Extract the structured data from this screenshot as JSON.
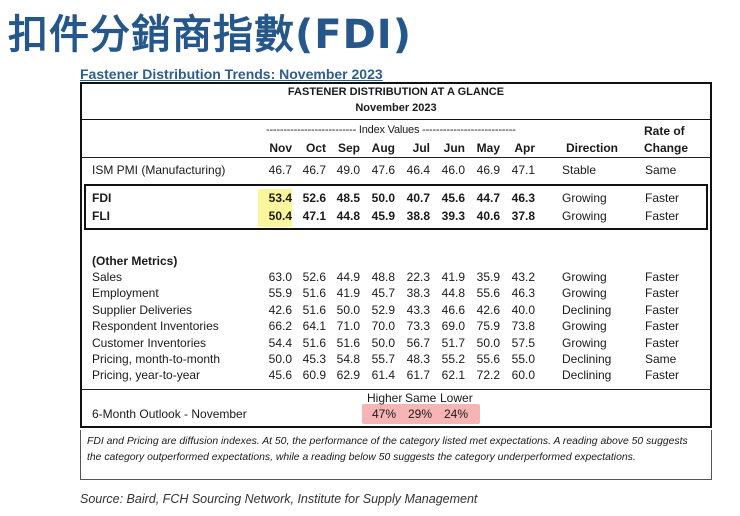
{
  "page_title": "扣件分銷商指數(FDI)",
  "subtitle": "Fastener Distribution Trends: November 2023",
  "table": {
    "heading_line1": "FASTENER DISTRIBUTION AT A GLANCE",
    "heading_line2": "November 2023",
    "index_values_label": "-------------------------- Index Values ---------------------------",
    "direction_header": "Direction",
    "rate_header_line1": "Rate of",
    "rate_header_line2": "Change",
    "months": [
      "Nov",
      "Oct",
      "Sep",
      "Aug",
      "Jul",
      "Jun",
      "May",
      "Apr"
    ],
    "ism": {
      "label": "ISM PMI (Manufacturing)",
      "values": [
        "46.7",
        "46.7",
        "49.0",
        "47.6",
        "46.4",
        "46.0",
        "46.9",
        "47.1"
      ],
      "direction": "Stable",
      "rate": "Same"
    },
    "fdi": {
      "label": "FDI",
      "values": [
        "53.4",
        "52.6",
        "48.5",
        "50.0",
        "40.7",
        "45.6",
        "44.7",
        "46.3"
      ],
      "direction": "Growing",
      "rate": "Faster"
    },
    "fli": {
      "label": "FLI",
      "values": [
        "50.4",
        "47.1",
        "44.8",
        "45.9",
        "38.8",
        "39.3",
        "40.6",
        "37.8"
      ],
      "direction": "Growing",
      "rate": "Faster"
    },
    "other_metrics_label": "(Other Metrics)",
    "other_rows": [
      {
        "label": "Sales",
        "values": [
          "63.0",
          "52.6",
          "44.9",
          "48.8",
          "22.3",
          "41.9",
          "35.9",
          "43.2"
        ],
        "direction": "Growing",
        "rate": "Faster"
      },
      {
        "label": "Employment",
        "values": [
          "55.9",
          "51.6",
          "41.9",
          "45.7",
          "38.3",
          "44.8",
          "55.6",
          "46.3"
        ],
        "direction": "Growing",
        "rate": "Faster"
      },
      {
        "label": "Supplier Deliveries",
        "values": [
          "42.6",
          "51.6",
          "50.0",
          "52.9",
          "43.3",
          "46.6",
          "42.6",
          "40.0"
        ],
        "direction": "Declining",
        "rate": "Faster"
      },
      {
        "label": "Respondent Inventories",
        "values": [
          "66.2",
          "64.1",
          "71.0",
          "70.0",
          "73.3",
          "69.0",
          "75.9",
          "73.8"
        ],
        "direction": "Growing",
        "rate": "Faster"
      },
      {
        "label": "Customer Inventories",
        "values": [
          "54.4",
          "51.6",
          "51.6",
          "50.0",
          "56.7",
          "51.7",
          "50.0",
          "57.5"
        ],
        "direction": "Growing",
        "rate": "Faster"
      },
      {
        "label": "Pricing, month-to-month",
        "values": [
          "50.0",
          "45.3",
          "54.8",
          "55.7",
          "48.3",
          "55.2",
          "55.6",
          "55.0"
        ],
        "direction": "Declining",
        "rate": "Same"
      },
      {
        "label": "Pricing, year-to-year",
        "values": [
          "45.6",
          "60.9",
          "62.9",
          "61.4",
          "61.7",
          "62.1",
          "72.2",
          "60.0"
        ],
        "direction": "Declining",
        "rate": "Faster"
      }
    ],
    "outlook": {
      "label": "6-Month Outlook - November",
      "headers": [
        "Higher",
        "Same",
        "Lower"
      ],
      "values": [
        "47%",
        "29%",
        "24%"
      ]
    }
  },
  "footnote": "FDI and Pricing are diffusion indexes.  At 50, the performance of the category listed met expectations. A reading above 50 suggests the category outperformed expectations, while a reading below 50 suggests the category underperformed expectations.",
  "source": "Source: Baird, FCH Sourcing Network, Institute for Supply Management"
}
